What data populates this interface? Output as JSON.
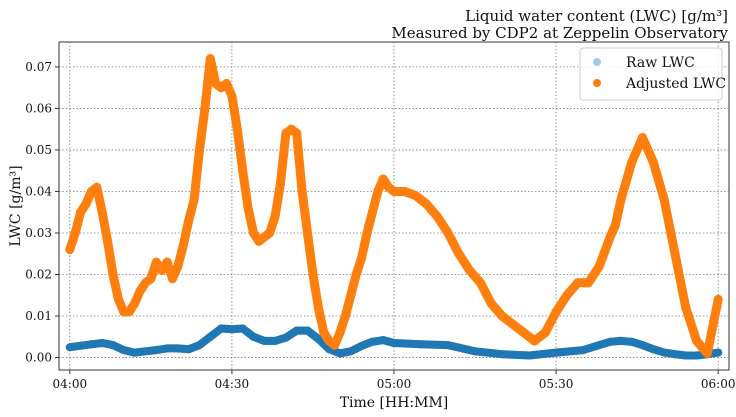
{
  "chart_data": {
    "type": "scatter",
    "title_lines": [
      "Liquid water content (LWC) [g/m³]",
      "Measured by CDP2 at Zeppelin Observatory"
    ],
    "xlabel": "Time [HH:MM]",
    "ylabel": "LWC [g/m³]",
    "x_unit": "minutes since 04:00",
    "xlim": [
      "03:58",
      "06:02"
    ],
    "ylim": [
      -0.003,
      0.076
    ],
    "x_ticks": [
      "04:00",
      "04:30",
      "05:00",
      "05:30",
      "06:00"
    ],
    "y_ticks": [
      "0.00",
      "0.01",
      "0.02",
      "0.03",
      "0.04",
      "0.05",
      "0.06",
      "0.07"
    ],
    "grid": true,
    "legend_position": "top-right",
    "series": [
      {
        "name": "Raw LWC",
        "color": "#a6c8e6",
        "x": [
          "04:00",
          "04:04",
          "04:06",
          "04:08",
          "04:10",
          "04:12",
          "04:14",
          "04:16",
          "04:18",
          "04:20",
          "04:22",
          "04:24",
          "04:26",
          "04:28",
          "04:30",
          "04:32",
          "04:34",
          "04:36",
          "04:38",
          "04:40",
          "04:42",
          "04:44",
          "04:46",
          "04:48",
          "04:50",
          "04:52",
          "04:54",
          "04:56",
          "04:58",
          "05:00",
          "05:05",
          "05:10",
          "05:15",
          "05:20",
          "05:25",
          "05:30",
          "05:35",
          "05:38",
          "05:40",
          "05:42",
          "05:44",
          "05:46",
          "05:48",
          "05:50",
          "05:52",
          "05:54",
          "05:56",
          "05:58",
          "06:00"
        ],
        "y": [
          0.0025,
          0.0032,
          0.0035,
          0.003,
          0.0018,
          0.0012,
          0.0015,
          0.0018,
          0.0022,
          0.0022,
          0.002,
          0.003,
          0.005,
          0.007,
          0.0068,
          0.007,
          0.005,
          0.004,
          0.004,
          0.0048,
          0.0065,
          0.0065,
          0.0045,
          0.002,
          0.001,
          0.0015,
          0.0028,
          0.0038,
          0.0042,
          0.0035,
          0.0032,
          0.003,
          0.0015,
          0.0008,
          0.0005,
          0.0012,
          0.0018,
          0.003,
          0.0038,
          0.004,
          0.0038,
          0.003,
          0.002,
          0.0012,
          0.0008,
          0.0005,
          0.0005,
          0.0008,
          0.0012
        ]
      },
      {
        "name": "Adjusted LWC",
        "color": "#1f77b4",
        "x": [
          "04:00",
          "04:04",
          "04:06",
          "04:08",
          "04:10",
          "04:12",
          "04:14",
          "04:16",
          "04:18",
          "04:20",
          "04:22",
          "04:24",
          "04:26",
          "04:28",
          "04:30",
          "04:32",
          "04:34",
          "04:36",
          "04:38",
          "04:40",
          "04:42",
          "04:44",
          "04:46",
          "04:48",
          "04:50",
          "04:52",
          "04:54",
          "04:56",
          "04:58",
          "05:00",
          "05:05",
          "05:10",
          "05:15",
          "05:20",
          "05:25",
          "05:30",
          "05:35",
          "05:38",
          "05:40",
          "05:42",
          "05:44",
          "05:46",
          "05:48",
          "05:50",
          "05:52",
          "05:54",
          "05:56",
          "05:58",
          "06:00"
        ],
        "y": [
          0.0025,
          0.0032,
          0.0035,
          0.003,
          0.0018,
          0.0012,
          0.0015,
          0.0018,
          0.0022,
          0.0022,
          0.002,
          0.003,
          0.005,
          0.007,
          0.0068,
          0.007,
          0.005,
          0.004,
          0.004,
          0.0048,
          0.0065,
          0.0065,
          0.0045,
          0.002,
          0.001,
          0.0015,
          0.0028,
          0.0038,
          0.0042,
          0.0035,
          0.0032,
          0.003,
          0.0015,
          0.0008,
          0.0005,
          0.0012,
          0.0018,
          0.003,
          0.0038,
          0.004,
          0.0038,
          0.003,
          0.002,
          0.0012,
          0.0008,
          0.0005,
          0.0005,
          0.0008,
          0.0012
        ]
      },
      {
        "name": "Adjusted LWC",
        "color": "#ff7f0e",
        "x": [
          "04:00",
          "04:01",
          "04:02",
          "04:03",
          "04:04",
          "04:05",
          "04:06",
          "04:07",
          "04:08",
          "04:09",
          "04:10",
          "04:11",
          "04:12",
          "04:13",
          "04:14",
          "04:15",
          "04:16",
          "04:17",
          "04:18",
          "04:19",
          "04:20",
          "04:21",
          "04:22",
          "04:23",
          "04:24",
          "04:25",
          "04:26",
          "04:27",
          "04:28",
          "04:29",
          "04:30",
          "04:31",
          "04:32",
          "04:33",
          "04:34",
          "04:35",
          "04:36",
          "04:37",
          "04:38",
          "04:39",
          "04:40",
          "04:41",
          "04:42",
          "04:43",
          "04:44",
          "04:45",
          "04:46",
          "04:47",
          "04:48",
          "04:49",
          "04:50",
          "04:51",
          "04:52",
          "04:53",
          "04:54",
          "04:55",
          "04:56",
          "04:57",
          "04:58",
          "04:59",
          "05:00",
          "05:02",
          "05:04",
          "05:06",
          "05:08",
          "05:10",
          "05:12",
          "05:14",
          "05:16",
          "05:18",
          "05:20",
          "05:22",
          "05:24",
          "05:26",
          "05:28",
          "05:30",
          "05:32",
          "05:34",
          "05:35",
          "05:36",
          "05:38",
          "05:40",
          "05:41",
          "05:42",
          "05:44",
          "05:46",
          "05:48",
          "05:50",
          "05:52",
          "05:54",
          "05:56",
          "05:58",
          "06:00"
        ],
        "y": [
          0.026,
          0.03,
          0.035,
          0.037,
          0.04,
          0.041,
          0.035,
          0.028,
          0.02,
          0.014,
          0.011,
          0.011,
          0.013,
          0.016,
          0.018,
          0.019,
          0.023,
          0.021,
          0.023,
          0.019,
          0.022,
          0.027,
          0.033,
          0.038,
          0.05,
          0.06,
          0.072,
          0.066,
          0.065,
          0.066,
          0.063,
          0.055,
          0.045,
          0.036,
          0.03,
          0.028,
          0.029,
          0.03,
          0.034,
          0.042,
          0.054,
          0.055,
          0.054,
          0.04,
          0.03,
          0.02,
          0.012,
          0.006,
          0.004,
          0.003,
          0.006,
          0.01,
          0.015,
          0.02,
          0.024,
          0.03,
          0.035,
          0.04,
          0.043,
          0.041,
          0.04,
          0.04,
          0.039,
          0.037,
          0.034,
          0.03,
          0.025,
          0.021,
          0.018,
          0.013,
          0.01,
          0.008,
          0.006,
          0.004,
          0.006,
          0.011,
          0.015,
          0.018,
          0.018,
          0.018,
          0.022,
          0.029,
          0.032,
          0.038,
          0.047,
          0.053,
          0.047,
          0.038,
          0.025,
          0.012,
          0.004,
          0.001,
          0.014
        ]
      }
    ]
  }
}
